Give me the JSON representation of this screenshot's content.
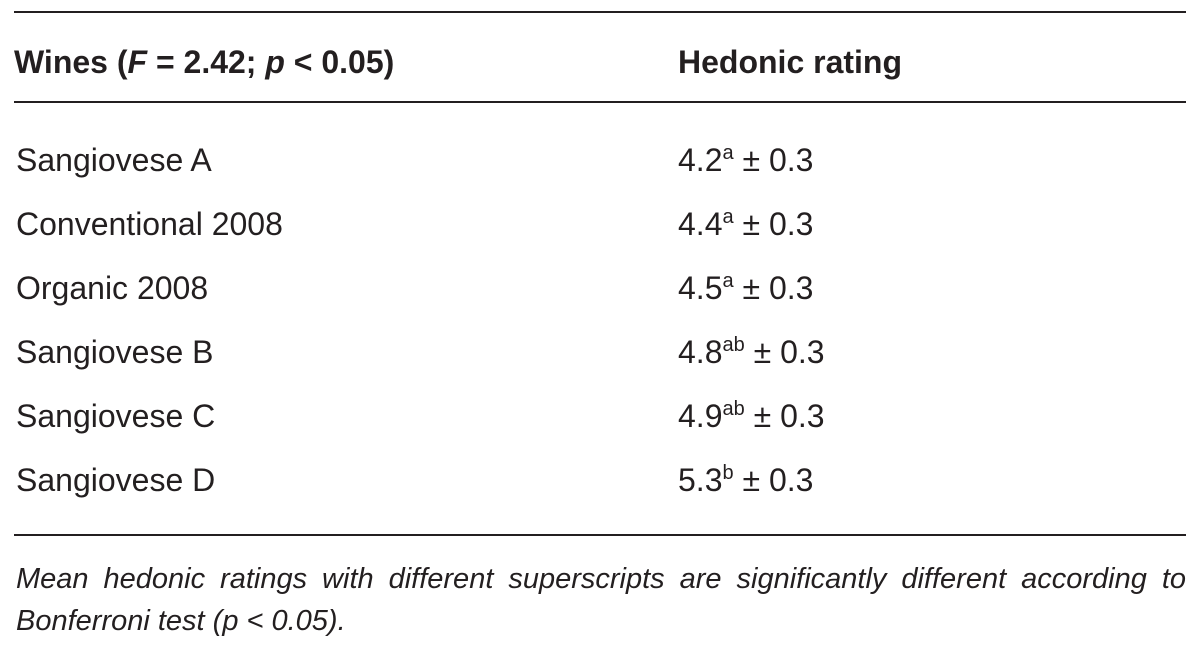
{
  "table": {
    "headers": {
      "col1_prefix": "Wines (",
      "col1_f": "F",
      "col1_f_value": " = 2.42; ",
      "col1_p": "p",
      "col1_p_value": " < 0.05)",
      "col2": "Hedonic rating"
    },
    "rows": [
      {
        "wine": "Sangiovese A",
        "mean": "4.2",
        "sup": "a",
        "sd": " ± 0.3"
      },
      {
        "wine": "Conventional 2008",
        "mean": "4.4",
        "sup": "a",
        "sd": " ± 0.3"
      },
      {
        "wine": "Organic 2008",
        "mean": "4.5",
        "sup": "a",
        "sd": " ± 0.3"
      },
      {
        "wine": "Sangiovese B",
        "mean": "4.8",
        "sup": "ab",
        "sd": " ± 0.3"
      },
      {
        "wine": "Sangiovese C",
        "mean": "4.9",
        "sup": "ab",
        "sd": " ± 0.3"
      },
      {
        "wine": "Sangiovese D",
        "mean": "5.3",
        "sup": "b",
        "sd": " ± 0.3"
      }
    ],
    "footnote": "Mean hedonic ratings with different superscripts are significantly different according to Bonferroni test (p < 0.05)."
  }
}
